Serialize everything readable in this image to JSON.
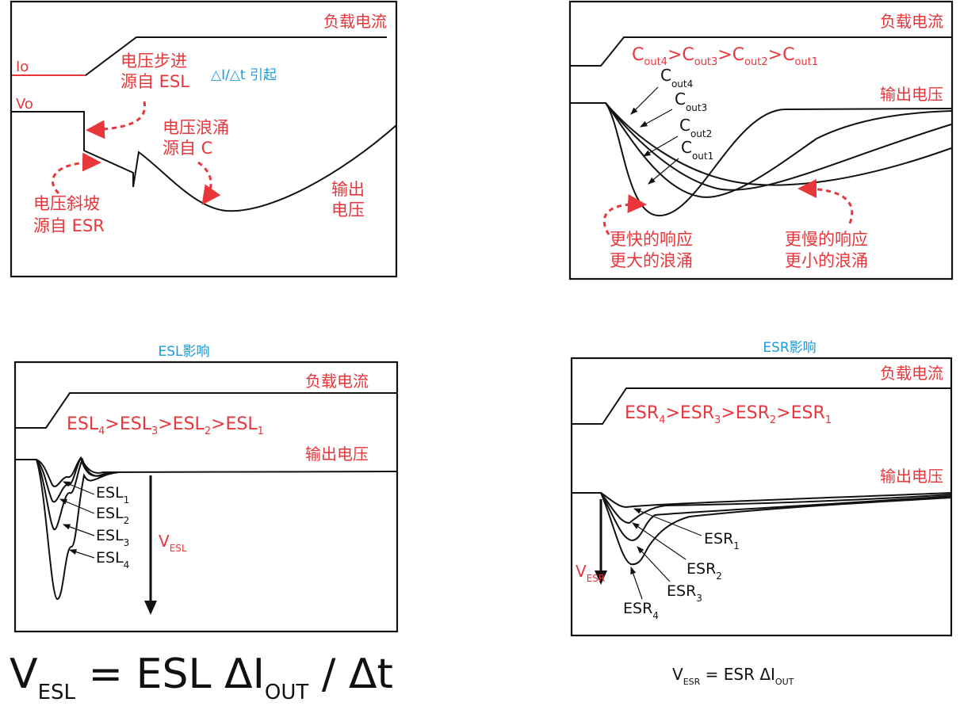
{
  "panels": {
    "p1": {
      "load_current": "负载电流",
      "io": "Io",
      "vo": "Vo",
      "step_l1": "电压步进",
      "step_l2": "源自 ESL",
      "didt": "△I/△t 引起",
      "surge_l1": "电压浪涌",
      "surge_l2": "源自 C",
      "ramp_l1": "电压斜坡",
      "ramp_l2": "源自 ESR",
      "out_l1": "输出",
      "out_l2": "电压"
    },
    "p2": {
      "load_current": "负载电流",
      "output_voltage": "输出电压",
      "order": [
        "C",
        "out4",
        ">C",
        "out3",
        ">C",
        "out2",
        ">C",
        "out1"
      ],
      "labels": [
        {
          "base": "C",
          "sub": "out4"
        },
        {
          "base": "C",
          "sub": "out3"
        },
        {
          "base": "C",
          "sub": "out2"
        },
        {
          "base": "C",
          "sub": "out1"
        }
      ],
      "fast_l1": "更快的响应",
      "fast_l2": "更大的浪涌",
      "slow_l1": "更慢的响应",
      "slow_l2": "更小的浪涌"
    },
    "p3": {
      "title": "ESL影响",
      "load_current": "负载电流",
      "output_voltage": "输出电压",
      "order": [
        "ESL",
        "4",
        ">ESL",
        "3",
        ">ESL",
        "2",
        ">ESL",
        "1"
      ],
      "labels": [
        {
          "base": "ESL",
          "sub": "1"
        },
        {
          "base": "ESL",
          "sub": "2"
        },
        {
          "base": "ESL",
          "sub": "3"
        },
        {
          "base": "ESL",
          "sub": "4"
        }
      ],
      "v_base": "V",
      "v_sub": "ESL"
    },
    "p4": {
      "title": "ESR影响",
      "load_current": "负载电流",
      "output_voltage": "输出电压",
      "order": [
        "ESR",
        "4",
        ">ESR",
        "3",
        ">ESR",
        "2",
        ">ESR",
        "1"
      ],
      "labels": [
        {
          "base": "ESR",
          "sub": "1"
        },
        {
          "base": "ESR",
          "sub": "2"
        },
        {
          "base": "ESR",
          "sub": "3"
        },
        {
          "base": "ESR",
          "sub": "4"
        }
      ],
      "v_base": "V",
      "v_sub": "ESR"
    }
  },
  "formulas": {
    "esl": {
      "v": "V",
      "v_sub": "ESL",
      "eq": " = ESL ΔI",
      "i_sub": "OUT",
      "tail": " / Δt"
    },
    "esr": {
      "v": "V",
      "v_sub": "ESR",
      "eq": " =  ESR  ΔI",
      "i_sub": "OUT"
    }
  },
  "colors": {
    "accent_red": "#e8363b",
    "title_blue": "#1a9be0",
    "ink": "#111111"
  }
}
